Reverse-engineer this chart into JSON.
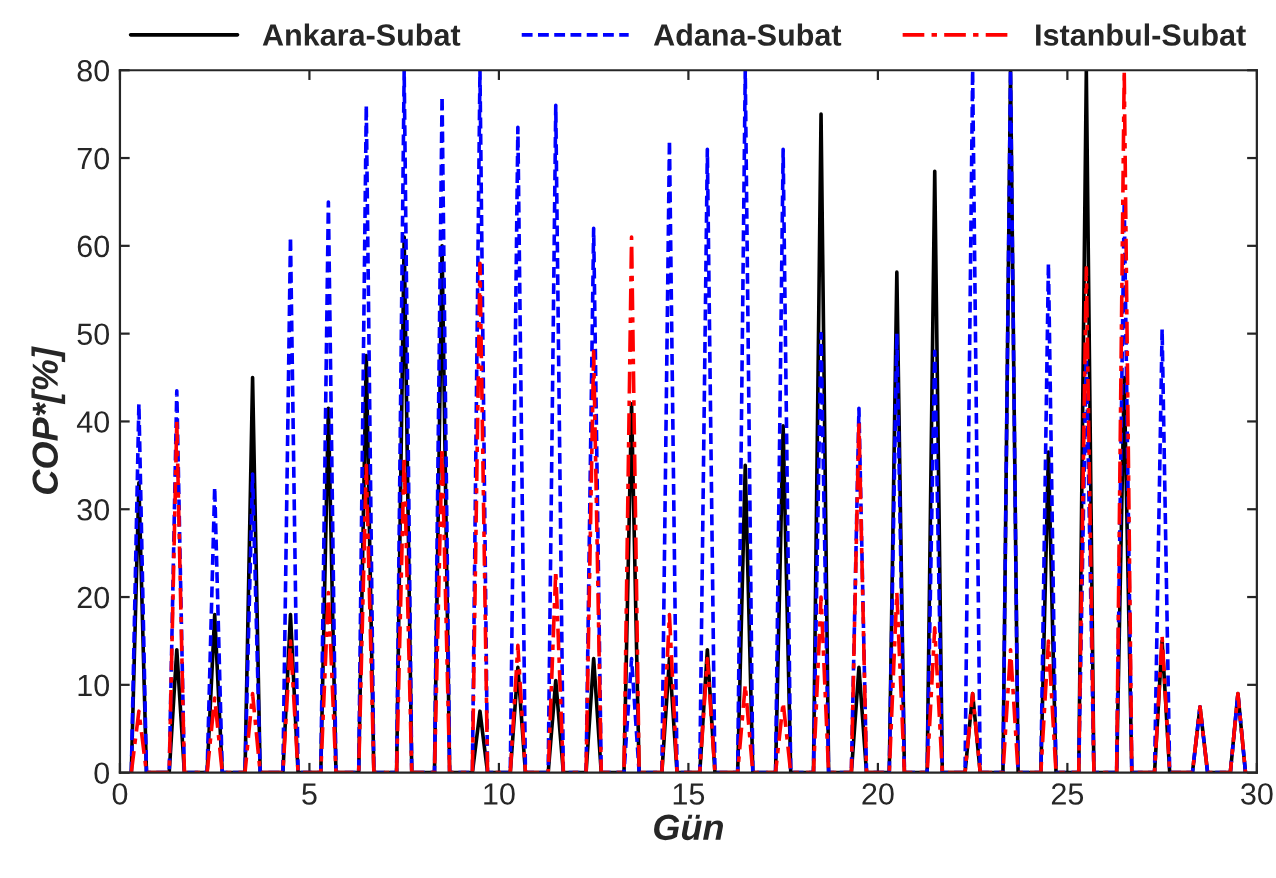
{
  "chart_data": {
    "type": "line",
    "xlabel": "Gün",
    "ylabel": "COP*[%]",
    "x": [
      0.3,
      0.5,
      0.7,
      1.3,
      1.5,
      1.7,
      2.3,
      2.5,
      2.7,
      3.3,
      3.5,
      3.7,
      4.3,
      4.5,
      4.7,
      5.3,
      5.5,
      5.7,
      6.3,
      6.5,
      6.7,
      7.3,
      7.5,
      7.7,
      8.3,
      8.5,
      8.7,
      9.3,
      9.5,
      9.7,
      10.3,
      10.5,
      10.7,
      11.3,
      11.5,
      11.7,
      12.3,
      12.5,
      12.7,
      13.3,
      13.5,
      13.7,
      14.3,
      14.5,
      14.7,
      15.3,
      15.5,
      15.7,
      16.3,
      16.5,
      16.7,
      17.3,
      17.5,
      17.7,
      18.3,
      18.5,
      18.7,
      19.3,
      19.5,
      19.7,
      20.3,
      20.5,
      20.7,
      21.3,
      21.5,
      21.7,
      22.3,
      22.5,
      22.7,
      23.3,
      23.5,
      23.7,
      24.3,
      24.5,
      24.7,
      25.3,
      25.5,
      25.7,
      26.3,
      26.5,
      26.7,
      27.3,
      27.5,
      27.7,
      28.3,
      28.5,
      28.7,
      29.3,
      29.5,
      29.7
    ],
    "series": [
      {
        "name": "Ankara-Subat",
        "color": "#000000",
        "line_style": "solid",
        "values": [
          0,
          33,
          0,
          0,
          14,
          0,
          0,
          18,
          0,
          0,
          45,
          0,
          0,
          18,
          0,
          0,
          41.5,
          0,
          0,
          47.5,
          0,
          0,
          61,
          0,
          0,
          60,
          0,
          0,
          7,
          0,
          0,
          12,
          0,
          0,
          10.5,
          0,
          0,
          13,
          0,
          0,
          42,
          0,
          0,
          13,
          0,
          0,
          14,
          0,
          0,
          35,
          0,
          0,
          39.5,
          0,
          0,
          75,
          0,
          0,
          12,
          0,
          0,
          57,
          0,
          0,
          68.5,
          0,
          0,
          9,
          0,
          0,
          80,
          0,
          0,
          36.5,
          0,
          0,
          80,
          0,
          0,
          45,
          0,
          0,
          15,
          0,
          0,
          7.5,
          0,
          0,
          9,
          0
        ]
      },
      {
        "name": "Adana-Subat",
        "color": "#0000ff",
        "line_style": "dashed",
        "values": [
          0,
          42,
          0,
          0,
          43.5,
          0,
          0,
          32.5,
          0,
          0,
          34,
          0,
          0,
          61,
          0,
          0,
          65,
          0,
          0,
          76,
          0,
          0,
          80,
          0,
          0,
          77,
          0,
          0,
          80,
          0,
          0,
          73.5,
          0,
          0,
          76,
          0,
          0,
          62,
          0,
          0,
          13,
          0,
          0,
          72,
          0,
          0,
          71,
          0,
          0,
          80,
          0,
          0,
          71,
          0,
          0,
          50,
          0,
          0,
          41.5,
          0,
          0,
          50,
          0,
          0,
          48,
          0,
          0,
          80,
          0,
          0,
          80,
          0,
          0,
          58,
          0,
          0,
          48,
          0,
          0,
          65,
          0,
          0,
          50.5,
          0,
          0,
          7.5,
          0,
          0,
          9,
          0
        ]
      },
      {
        "name": "Istanbul-Subat",
        "color": "#ff0000",
        "line_style": "dashdot",
        "values": [
          0,
          7,
          0,
          0,
          40,
          0,
          0,
          8.5,
          0,
          0,
          9,
          0,
          0,
          15,
          0,
          0,
          20.5,
          0,
          0,
          35,
          0,
          0,
          36,
          0,
          0,
          37,
          0,
          0,
          58,
          0,
          0,
          14.5,
          0,
          0,
          23,
          0,
          0,
          48,
          0,
          0,
          61,
          0,
          0,
          18,
          0,
          0,
          13,
          0,
          0,
          10,
          0,
          0,
          8,
          0,
          0,
          20,
          0,
          0,
          40,
          0,
          0,
          20.5,
          0,
          0,
          16.5,
          0,
          0,
          9,
          0,
          0,
          14,
          0,
          0,
          15,
          0,
          0,
          57.5,
          0,
          0,
          80,
          0,
          0,
          15.5,
          0,
          0,
          7.5,
          0,
          0,
          9,
          0
        ]
      }
    ],
    "xlim": [
      0,
      30
    ],
    "xticks": [
      0,
      5,
      10,
      15,
      20,
      25,
      30
    ],
    "ylim": [
      0,
      80
    ],
    "yticks": [
      0,
      10,
      20,
      30,
      40,
      50,
      60,
      70,
      80
    ],
    "legend": "top",
    "grid": false
  }
}
